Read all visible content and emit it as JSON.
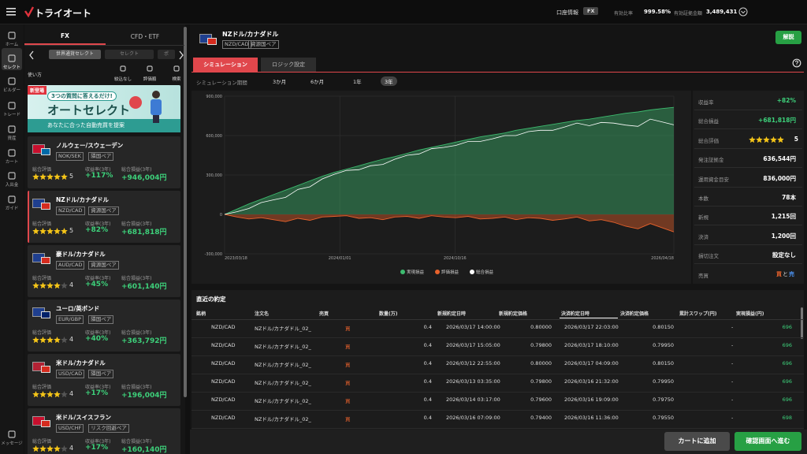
{
  "header": {
    "logo": "トライオート",
    "account": "口座情報",
    "mode": "FX",
    "ratio_label": "有効比率",
    "ratio": "999.58%",
    "margin_label": "有効証拠金額",
    "margin": "3,489,431"
  },
  "nav": [
    "ホーム",
    "セレクト",
    "ビルダー",
    "トレード",
    "資産",
    "カート",
    "入出金",
    "ガイド",
    "メッセージ"
  ],
  "left": {
    "tabs": [
      "FX",
      "CFD・ETF"
    ],
    "chips": [
      "世界通貨セレクト",
      "セレクト",
      "ポ"
    ],
    "howto": "使い方",
    "tools": [
      "絞込なし",
      "評価順",
      "検索"
    ],
    "banner": {
      "badge": "新登場",
      "question": "3つの質問に答えるだけ!",
      "title": "オートセレクト",
      "sub": "あなたに合った自動売買を提案"
    },
    "labels": {
      "rating": "総合評価",
      "return": "収益率(3年)",
      "pl": "総合損益(3年)"
    },
    "cards": [
      {
        "name": "ノルウェー/スウェーデン",
        "code": "NOK/SEK",
        "tag": "隣国ペア",
        "rating": "5",
        "return": "+117%",
        "pl": "+946,004円"
      },
      {
        "name": "NZドル/カナダドル",
        "code": "NZD/CAD",
        "tag": "資源国ペア",
        "rating": "5",
        "return": "+82%",
        "pl": "+681,818円"
      },
      {
        "name": "豪ドル/カナダドル",
        "code": "AUD/CAD",
        "tag": "資源国ペア",
        "rating": "4",
        "return": "+45%",
        "pl": "+601,140円"
      },
      {
        "name": "ユーロ/英ポンド",
        "code": "EUR/GBP",
        "tag": "隣国ペア",
        "rating": "4",
        "return": "+40%",
        "pl": "+363,792円"
      },
      {
        "name": "米ドル/カナダドル",
        "code": "USD/CAD",
        "tag": "隣国ペア",
        "rating": "4",
        "return": "+17%",
        "pl": "+196,004円"
      },
      {
        "name": "米ドル/スイスフラン",
        "code": "USD/CHF",
        "tag": "リスク回避ペア",
        "rating": "4",
        "return": "+17%",
        "pl": "+160,140円"
      }
    ]
  },
  "main": {
    "name": "NZドル/カナダドル",
    "code": "NZD/CAD",
    "tag": "資源国ペア",
    "explain": "解説",
    "tabs": [
      "シミュレーション",
      "ロジック設定"
    ],
    "period_label": "シミュレーション期間",
    "periods": [
      "3か月",
      "6か月",
      "1年",
      "3年"
    ],
    "stats": [
      {
        "label": "収益率",
        "value": "+82%"
      },
      {
        "label": "総合損益",
        "value": "+681,818円"
      },
      {
        "label": "総合評価",
        "value": "5"
      },
      {
        "label": "発注証拠金",
        "value": "636,544円"
      },
      {
        "label": "運用資金目安",
        "value": "836,000円"
      },
      {
        "label": "本数",
        "value": "78本"
      },
      {
        "label": "新規",
        "value": "1,215回"
      },
      {
        "label": "決済",
        "value": "1,200回"
      },
      {
        "label": "損切注文",
        "value": "設定なし"
      },
      {
        "label": "売買",
        "value": [
          "買",
          "と",
          "売"
        ]
      }
    ]
  },
  "trades": {
    "title": "直近の約定",
    "columns": [
      "銘柄",
      "注文名",
      "売買",
      "数量(万)",
      "新規約定日時",
      "新規約定価格",
      "決済約定日時",
      "決済約定価格",
      "累計スワップ(円)",
      "実現損益(円)"
    ],
    "rows": [
      [
        "NZD/CAD",
        "NZドル/カナダドル_02_",
        "買",
        "0.4",
        "2026/03/17 14:00:00",
        "0.80000",
        "2026/03/17 22:03:00",
        "0.80150",
        "-",
        "696"
      ],
      [
        "NZD/CAD",
        "NZドル/カナダドル_02_",
        "買",
        "0.4",
        "2026/03/17 15:05:00",
        "0.79800",
        "2026/03/17 18:10:00",
        "0.79950",
        "-",
        "696"
      ],
      [
        "NZD/CAD",
        "NZドル/カナダドル_02_",
        "買",
        "0.4",
        "2026/03/12 22:55:00",
        "0.80000",
        "2026/03/17 04:09:00",
        "0.80150",
        "-",
        "696"
      ],
      [
        "NZD/CAD",
        "NZドル/カナダドル_02_",
        "買",
        "0.4",
        "2026/03/13 03:35:00",
        "0.79800",
        "2026/03/16 21:32:00",
        "0.79950",
        "-",
        "696"
      ],
      [
        "NZD/CAD",
        "NZドル/カナダドル_02_",
        "買",
        "0.4",
        "2026/03/14 03:17:00",
        "0.79600",
        "2026/03/16 19:09:00",
        "0.79750",
        "-",
        "696"
      ],
      [
        "NZD/CAD",
        "NZドル/カナダドル_02_",
        "買",
        "0.4",
        "2026/03/16 07:09:00",
        "0.79400",
        "2026/03/16 11:36:00",
        "0.79550",
        "-",
        "698"
      ]
    ]
  },
  "footer": {
    "cart": "カートに追加",
    "confirm": "確認画面へ進む"
  },
  "chart_data": {
    "type": "area",
    "x": [
      "2023/03/18",
      "2023/04/18",
      "2023/05/18",
      "2023/06/18",
      "2023/07/18",
      "2023/08/18",
      "2023/09/18",
      "2023/10/18",
      "2023/11/18",
      "2023/12/18",
      "2024/01/18",
      "2024/02/18",
      "2024/03/18",
      "2024/04/18",
      "2024/05/18",
      "2024/06/18",
      "2024/07/18",
      "2024/08/18",
      "2024/09/18",
      "2024/10/18",
      "2024/11/18",
      "2024/12/18",
      "2025/01/18",
      "2025/02/18",
      "2025/03/18",
      "2025/04/18",
      "2025/05/18",
      "2025/06/18",
      "2025/07/18",
      "2025/08/18",
      "2025/09/18",
      "2025/10/18",
      "2025/11/18",
      "2025/12/18",
      "2026/01/18",
      "2026/02/18",
      "2026/03/18",
      "2026/04/18"
    ],
    "series": [
      {
        "name": "実現損益",
        "type": "area",
        "color": "#3dbb6f",
        "values": [
          0,
          40000,
          80000,
          115000,
          150000,
          185000,
          220000,
          255000,
          290000,
          320000,
          345000,
          370000,
          395000,
          420000,
          440000,
          465000,
          490000,
          510000,
          530000,
          550000,
          570000,
          590000,
          605000,
          620000,
          640000,
          655000,
          670000,
          685000,
          700000,
          715000,
          725000,
          740000,
          755000,
          770000,
          780000,
          795000,
          805000,
          815000
        ]
      },
      {
        "name": "評価損益",
        "type": "area",
        "color": "#e8622c",
        "values": [
          0,
          -20000,
          -35000,
          -25000,
          -40000,
          -55000,
          -30000,
          -45000,
          -20000,
          -15000,
          -10000,
          -30000,
          -25000,
          -40000,
          -20000,
          -15000,
          -30000,
          -10000,
          -20000,
          -25000,
          -15000,
          -35000,
          -30000,
          -20000,
          -40000,
          -25000,
          -30000,
          -45000,
          -35000,
          -20000,
          -50000,
          -40000,
          -60000,
          -90000,
          -110000,
          -70000,
          -100000,
          -133182
        ]
      },
      {
        "name": "総合損益",
        "type": "line",
        "color": "#ffffff",
        "values": [
          0,
          20000,
          45000,
          90000,
          110000,
          130000,
          190000,
          210000,
          270000,
          305000,
          335000,
          340000,
          370000,
          380000,
          420000,
          450000,
          460000,
          500000,
          510000,
          525000,
          555000,
          555000,
          575000,
          600000,
          600000,
          630000,
          640000,
          640000,
          665000,
          695000,
          675000,
          700000,
          695000,
          680000,
          670000,
          725000,
          705000,
          681818
        ]
      }
    ],
    "xlim": [
      "2023/03/18",
      "2026/04/18"
    ],
    "xticks": [
      "2023/03/18",
      "2024/01/01",
      "2024/10/16",
      "2026/04/18"
    ],
    "ylim": [
      -300000,
      900000
    ],
    "yticks": [
      {
        "value": -300000,
        "label": "-300,000"
      },
      0,
      {
        "value": 300000,
        "label": "300,000"
      },
      {
        "value": 600000,
        "label": "600,000"
      },
      {
        "value": 900000,
        "label": "900,000"
      }
    ],
    "grid": true
  }
}
